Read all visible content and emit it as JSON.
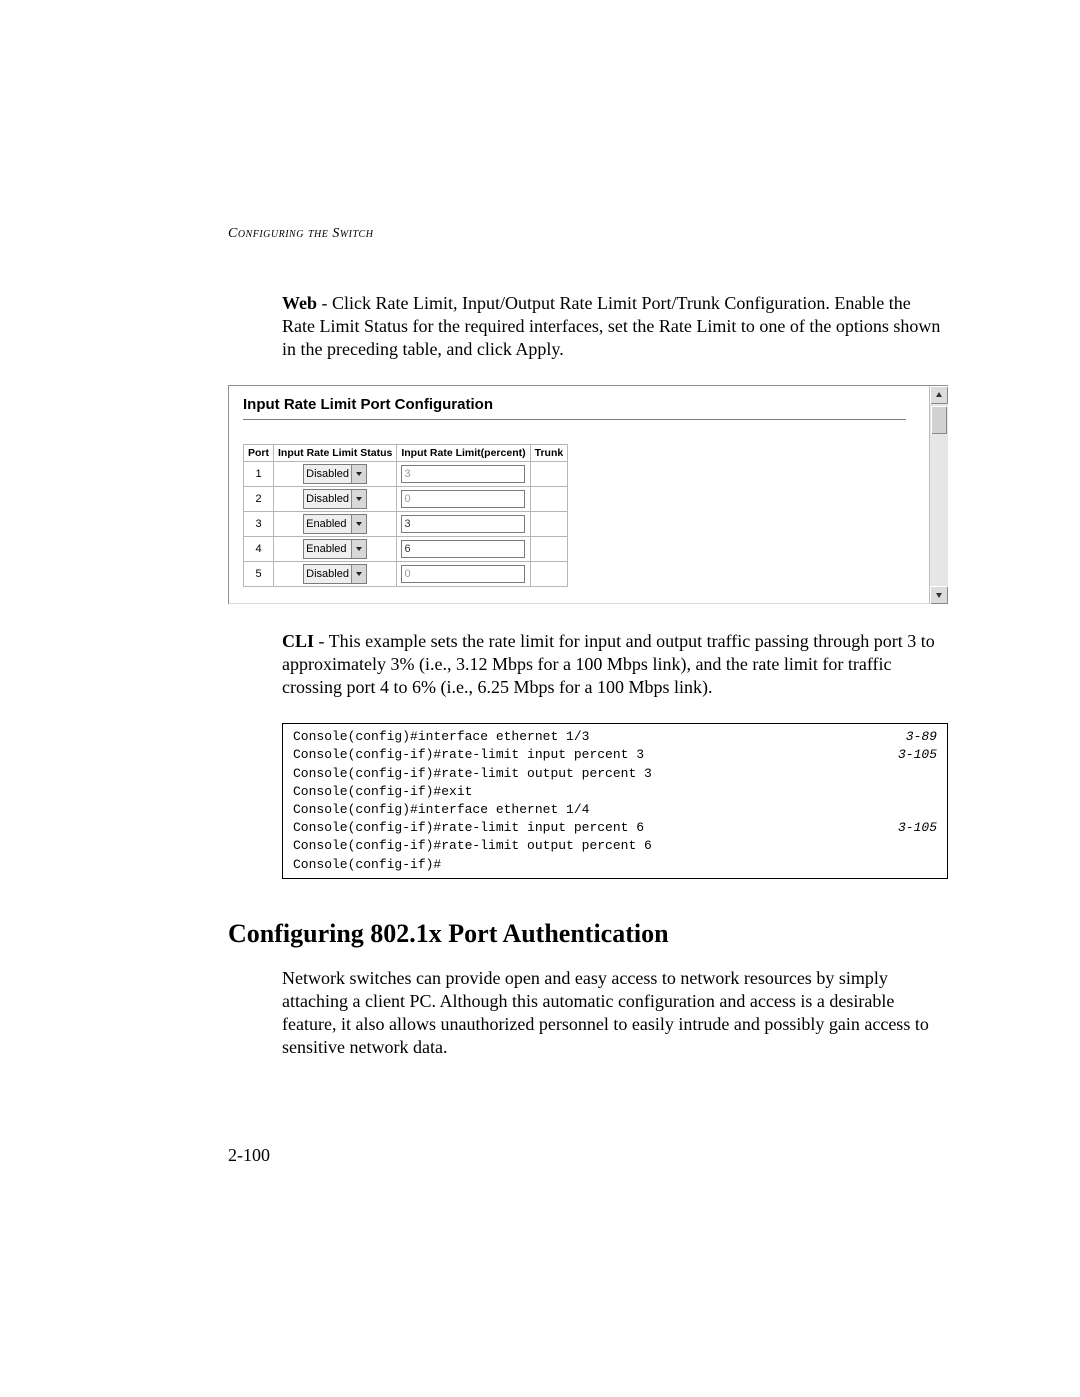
{
  "header": {
    "running_title": "Configuring the Switch"
  },
  "web_para": {
    "lead": "Web",
    "text": " - Click Rate Limit, Input/Output Rate Limit Port/Trunk Configuration. Enable the Rate Limit Status for the required interfaces, set the Rate Limit to one of the options shown in the preceding table, and click Apply."
  },
  "screenshot": {
    "title": "Input Rate Limit Port Configuration",
    "columns": [
      "Port",
      "Input Rate Limit Status",
      "Input Rate Limit(percent)",
      "Trunk"
    ],
    "status_options": [
      "Disabled",
      "Enabled"
    ],
    "rows": [
      {
        "port": "1",
        "status": "Disabled",
        "value": "3",
        "active": false,
        "trunk": ""
      },
      {
        "port": "2",
        "status": "Disabled",
        "value": "0",
        "active": false,
        "trunk": ""
      },
      {
        "port": "3",
        "status": "Enabled",
        "value": "3",
        "active": true,
        "trunk": ""
      },
      {
        "port": "4",
        "status": "Enabled",
        "value": "6",
        "active": true,
        "trunk": ""
      },
      {
        "port": "5",
        "status": "Disabled",
        "value": "0",
        "active": false,
        "trunk": ""
      }
    ]
  },
  "cli_para": {
    "lead": "CLI",
    "text": " - This example sets the rate limit for input and output traffic passing through port 3 to approximately 3% (i.e., 3.12 Mbps for a 100 Mbps link), and the rate limit for traffic crossing port 4 to 6% (i.e., 6.25 Mbps for a 100 Mbps link)."
  },
  "cli_block": {
    "lines": [
      {
        "cmd": "Console(config)#interface ethernet 1/3",
        "ref": "3-89"
      },
      {
        "cmd": "Console(config-if)#rate-limit input percent 3",
        "ref": "3-105"
      },
      {
        "cmd": "Console(config-if)#rate-limit output percent 3",
        "ref": ""
      },
      {
        "cmd": "Console(config-if)#exit",
        "ref": ""
      },
      {
        "cmd": "Console(config)#interface ethernet 1/4",
        "ref": ""
      },
      {
        "cmd": "Console(config-if)#rate-limit input percent 6",
        "ref": "3-105"
      },
      {
        "cmd": "Console(config-if)#rate-limit output percent 6",
        "ref": ""
      },
      {
        "cmd": "Console(config-if)#",
        "ref": ""
      }
    ]
  },
  "section": {
    "heading": "Configuring 802.1x Port Authentication",
    "para": "Network switches can provide open and easy access to network resources by simply attaching a client PC. Although this automatic configuration and access is a desirable feature, it also allows unauthorized personnel to easily intrude and possibly gain access to sensitive network data."
  },
  "page_number": "2-100",
  "colors": {
    "text": "#000000",
    "border": "#b6b6b6",
    "scrollbar_track": "#e6e6e6",
    "scrollbar_thumb": "#d2d2d2",
    "input_inactive": "#9a9a9a"
  }
}
